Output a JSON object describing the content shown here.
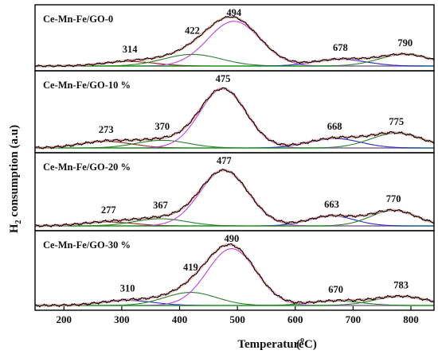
{
  "chart_data": {
    "type": "line",
    "xlabel": "Temperature",
    "xlabel_unit": "(oC)",
    "xlabel_unit_sup": "o",
    "xlabel_unit_base": "C",
    "ylabel": "H2 consumption (a.u)",
    "ylabel_pre": "H",
    "ylabel_sub": "2",
    "ylabel_post": " consumption (a.u)",
    "xlim": [
      150,
      840
    ],
    "xticks": [
      200,
      300,
      400,
      500,
      600,
      700,
      800
    ],
    "grid": false,
    "colors": {
      "experimental": "#000000",
      "fit_total": "#e8a0a0",
      "peak_magenta": "#c040e0",
      "peak_green": "#2a7d2a",
      "peak_blue": "#2828c8",
      "peak_brown": "#8b2a1a",
      "baseline": "#00c000"
    },
    "panels": [
      {
        "title": "Ce-Mn-Fe/GO-0",
        "ylim": [
          0,
          1.12
        ],
        "peaks": [
          {
            "x": 314,
            "height": 0.1,
            "width": 45,
            "label": "314",
            "color": "#8b2a1a"
          },
          {
            "x": 422,
            "height": 0.26,
            "width": 50,
            "label": "422",
            "color": "#2a7d2a"
          },
          {
            "x": 494,
            "height": 1.0,
            "width": 45,
            "label": "494",
            "color": "#c040e0"
          },
          {
            "x": 678,
            "height": 0.15,
            "width": 45,
            "label": "678",
            "color": "#2828c8"
          },
          {
            "x": 790,
            "height": 0.26,
            "width": 45,
            "label": "790",
            "color": "#2a7d2a"
          }
        ]
      },
      {
        "title": "Ce-Mn-Fe/GO-10 %",
        "ylim": [
          0,
          1.12
        ],
        "peaks": [
          {
            "x": 273,
            "height": 0.11,
            "width": 45,
            "label": "273",
            "color": "#8b2a1a"
          },
          {
            "x": 370,
            "height": 0.13,
            "width": 45,
            "label": "370",
            "color": "#2a7d2a"
          },
          {
            "x": 475,
            "height": 1.0,
            "width": 40,
            "label": "475",
            "color": "#c040e0"
          },
          {
            "x": 668,
            "height": 0.16,
            "width": 45,
            "label": "668",
            "color": "#2828c8"
          },
          {
            "x": 775,
            "height": 0.25,
            "width": 45,
            "label": "775",
            "color": "#2a7d2a"
          }
        ]
      },
      {
        "title": "Ce-Mn-Fe/GO-20 %",
        "ylim": [
          0,
          1.12
        ],
        "peaks": [
          {
            "x": 277,
            "height": 0.07,
            "width": 45,
            "label": "277",
            "color": "#8b2a1a"
          },
          {
            "x": 367,
            "height": 0.13,
            "width": 45,
            "label": "367",
            "color": "#2a7d2a"
          },
          {
            "x": 477,
            "height": 1.0,
            "width": 42,
            "label": "477",
            "color": "#c040e0"
          },
          {
            "x": 663,
            "height": 0.18,
            "width": 40,
            "label": "663",
            "color": "#2828c8"
          },
          {
            "x": 770,
            "height": 0.28,
            "width": 40,
            "label": "770",
            "color": "#2a7d2a"
          }
        ]
      },
      {
        "title": "Ce-Mn-Fe/GO-30 %",
        "ylim": [
          0,
          1.12
        ],
        "peaks": [
          {
            "x": 310,
            "height": 0.09,
            "width": 45,
            "label": "310",
            "color": "#2828c8"
          },
          {
            "x": 419,
            "height": 0.23,
            "width": 45,
            "label": "419",
            "color": "#2a7d2a"
          },
          {
            "x": 490,
            "height": 1.0,
            "width": 42,
            "label": "490",
            "color": "#c040e0"
          },
          {
            "x": 670,
            "height": 0.08,
            "width": 45,
            "label": "670",
            "color": "#2a7d2a"
          },
          {
            "x": 783,
            "height": 0.16,
            "width": 45,
            "label": "783",
            "color": "#2a7d2a"
          }
        ]
      }
    ]
  }
}
